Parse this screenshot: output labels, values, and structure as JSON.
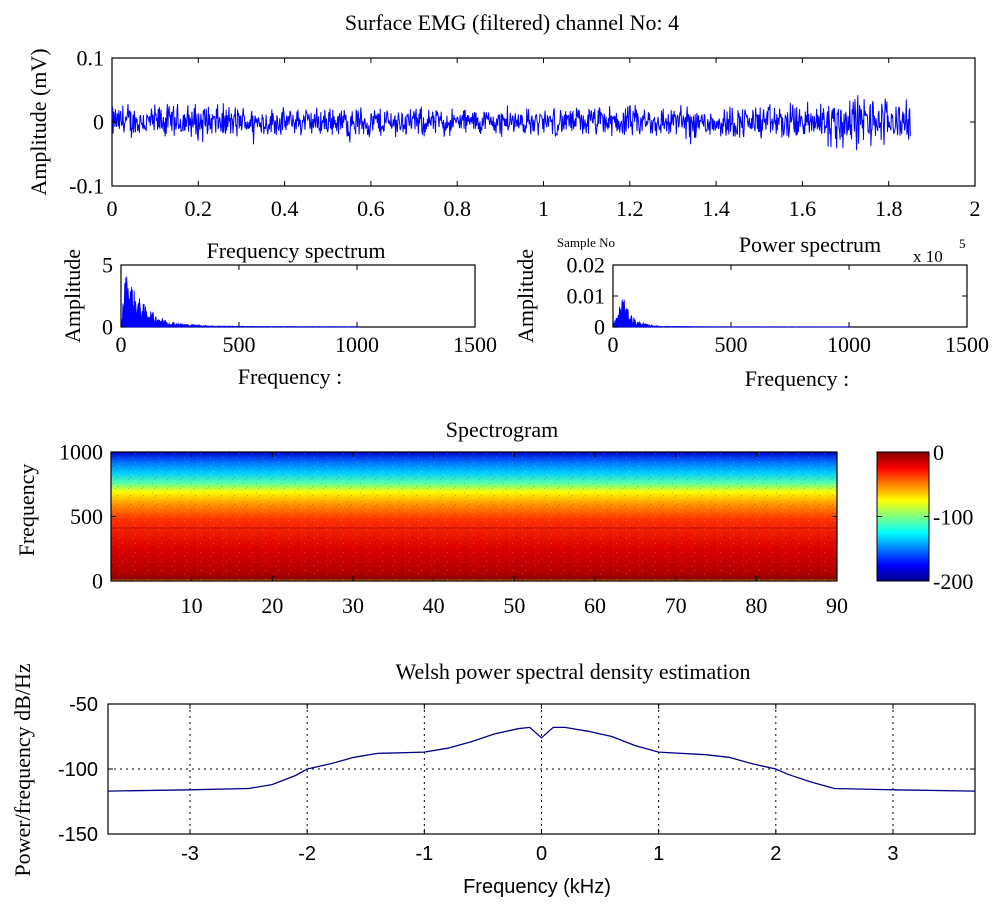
{
  "chart_data": [
    {
      "id": "emg",
      "type": "line",
      "title": "Surface EMG (filtered)  channel No: 4",
      "ylabel": "Amplitude (mV)",
      "xlabel": "Sample No",
      "x_exponent_label": "x 10",
      "x_exponent": "5",
      "xlim": [
        0,
        2
      ],
      "ylim": [
        -0.1,
        0.1
      ],
      "x_ticks": [
        "0",
        "0.2",
        "0.4",
        "0.6",
        "0.8",
        "1",
        "1.2",
        "1.4",
        "1.6",
        "1.8",
        "2"
      ],
      "y_ticks": [
        "-0.1",
        "0",
        "0.1"
      ],
      "signal_extent": [
        0,
        1.85
      ],
      "envelope": {
        "x": [
          0,
          0.2,
          0.4,
          0.6,
          0.8,
          1.0,
          1.2,
          1.4,
          1.6,
          1.7,
          1.8,
          1.85
        ],
        "amplitude": [
          0.03,
          0.035,
          0.025,
          0.03,
          0.025,
          0.025,
          0.03,
          0.03,
          0.035,
          0.055,
          0.045,
          0.035
        ]
      },
      "color": "#0000ff"
    },
    {
      "id": "freq",
      "type": "line",
      "title": "Frequency spectrum",
      "ylabel": "Amplitude",
      "xlabel": "Frequency :",
      "xlim": [
        0,
        1500
      ],
      "ylim": [
        0,
        5
      ],
      "x_ticks": [
        "0",
        "500",
        "1000",
        "1500"
      ],
      "y_ticks": [
        "0",
        "5"
      ],
      "envelope": {
        "x": [
          0,
          20,
          40,
          60,
          100,
          150,
          200,
          250,
          300,
          400,
          600,
          800,
          1000
        ],
        "y": [
          0.5,
          4.5,
          3.8,
          2.8,
          1.8,
          1.0,
          0.5,
          0.3,
          0.2,
          0.1,
          0.05,
          0.04,
          0.03
        ]
      },
      "color": "#0000ff"
    },
    {
      "id": "power",
      "type": "line",
      "title": "Power spectrum",
      "ylabel": "Amplitude",
      "xlabel": "Frequency :",
      "xlim": [
        0,
        1500
      ],
      "ylim": [
        0,
        0.02
      ],
      "x_ticks": [
        "0",
        "500",
        "1000",
        "1500"
      ],
      "y_ticks": [
        "0",
        "0.01",
        "0.02"
      ],
      "envelope": {
        "x": [
          0,
          20,
          40,
          60,
          100,
          150,
          200,
          400,
          1000
        ],
        "y": [
          0.001,
          0.004,
          0.0115,
          0.006,
          0.002,
          0.0008,
          0.0003,
          0.0001,
          5e-05
        ]
      },
      "color": "#0000ff"
    },
    {
      "id": "spectrogram",
      "type": "heatmap",
      "title": "Spectrogram",
      "ylabel": "Frequency",
      "xlim": [
        0,
        90
      ],
      "ylim": [
        0,
        1000
      ],
      "x_ticks": [
        "10",
        "20",
        "30",
        "40",
        "50",
        "60",
        "70",
        "80",
        "90"
      ],
      "y_ticks": [
        "0",
        "500",
        "1000"
      ],
      "colorbar": {
        "range": [
          -200,
          0
        ],
        "ticks": [
          "0",
          "-100",
          "-200"
        ],
        "colormap": "jet"
      },
      "profile": {
        "frequency": [
          0,
          100,
          200,
          300,
          400,
          500,
          600,
          700,
          800,
          900,
          1000
        ],
        "level_db": [
          -10,
          -15,
          -20,
          -25,
          -35,
          -45,
          -65,
          -90,
          -115,
          -140,
          -175
        ]
      }
    },
    {
      "id": "welch",
      "type": "line",
      "title": "Welsh power spectral density estimation",
      "ylabel": "Power/frequency dB/Hz",
      "xlabel": "Frequency (kHz)",
      "xlim": [
        -3.7,
        3.7
      ],
      "ylim": [
        -150,
        -50
      ],
      "x_ticks": [
        "-3",
        "-2",
        "-1",
        "0",
        "1",
        "2",
        "3"
      ],
      "y_ticks": [
        "-50",
        "-100",
        "-150"
      ],
      "grid": true,
      "series": [
        {
          "x": [
            -3.7,
            -3.0,
            -2.5,
            -2.3,
            -2.1,
            -2.0,
            -1.8,
            -1.6,
            -1.4,
            -1.0,
            -0.8,
            -0.6,
            -0.4,
            -0.2,
            -0.1,
            0.0,
            0.1,
            0.2,
            0.4,
            0.6,
            0.8,
            1.0,
            1.4,
            1.6,
            1.8,
            2.0,
            2.1,
            2.3,
            2.5,
            3.0,
            3.7
          ],
          "y": [
            -117,
            -116,
            -115,
            -112,
            -105,
            -100,
            -96,
            -91,
            -88,
            -87,
            -84,
            -79,
            -73,
            -69,
            -68,
            -76,
            -68,
            -68,
            -71,
            -75,
            -82,
            -87,
            -89,
            -91,
            -96,
            -100,
            -104,
            -110,
            -115,
            -116,
            -117
          ]
        }
      ],
      "color": "#00008b"
    }
  ]
}
